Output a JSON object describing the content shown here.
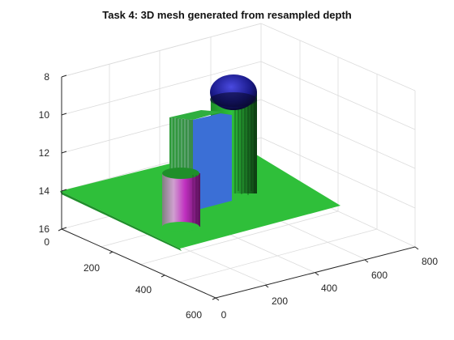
{
  "chart_data": {
    "type": "surface",
    "title": "Task 4: 3D mesh generated from resampled depth",
    "xlabel": "",
    "ylabel": "",
    "zlabel": "",
    "x_ticks": [
      "0",
      "200",
      "400",
      "600"
    ],
    "y_ticks": [
      "0",
      "200",
      "400",
      "600",
      "800"
    ],
    "z_ticks": [
      "8",
      "10",
      "12",
      "14",
      "16"
    ],
    "z_reversed": true,
    "grid": true,
    "xlim": [
      0,
      600
    ],
    "ylim": [
      0,
      800
    ],
    "zlim": [
      8,
      16
    ],
    "base_plane": {
      "depth": 14,
      "x_range": [
        0,
        600
      ],
      "y_range": [
        0,
        600
      ],
      "color": "#2fbf3a"
    },
    "objects": [
      {
        "kind": "box",
        "top_depth": 10.2,
        "color": "#3b6fd6"
      },
      {
        "kind": "cylinder",
        "top_depth": 9.1,
        "color": "#2fbf3a",
        "cap": "dome",
        "cap_color": "#1a1a7a"
      },
      {
        "kind": "cylinder",
        "top_depth": 12.9,
        "color": "#c040c0"
      }
    ]
  }
}
